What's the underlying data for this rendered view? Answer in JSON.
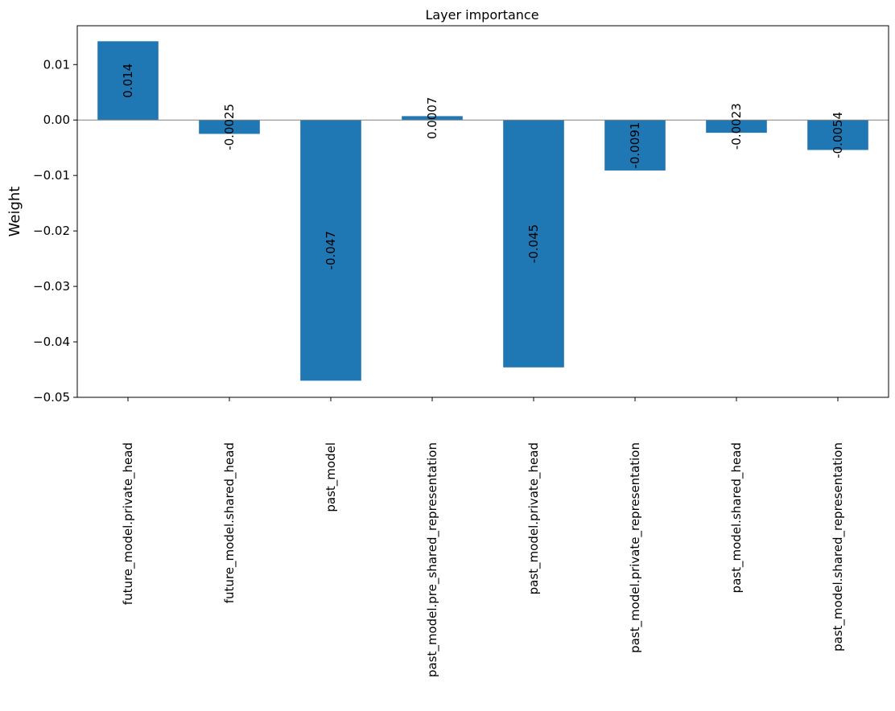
{
  "chart_data": {
    "type": "bar",
    "title": "Layer importance",
    "xlabel": "",
    "ylabel": "Weight",
    "categories": [
      "future_model.private_head",
      "future_model.shared_head",
      "past_model",
      "past_model.pre_shared_representation",
      "past_model.private_head",
      "past_model.private_representation",
      "past_model.shared_head",
      "past_model.shared_representation"
    ],
    "values": [
      0.0142,
      -0.0025,
      -0.047,
      0.0007,
      -0.0446,
      -0.0091,
      -0.0023,
      -0.0054
    ],
    "labels": [
      "0.014",
      "-0.0025",
      "-0.047",
      "0.0007",
      "-0.045",
      "-0.0091",
      "-0.0023",
      "-0.0054"
    ],
    "ylim": [
      -0.05,
      0.017
    ],
    "yticks": [
      0.01,
      0.0,
      -0.01,
      -0.02,
      -0.03,
      -0.04,
      -0.05
    ],
    "ytick_labels": [
      "0.01",
      "0.00",
      "−0.01",
      "−0.02",
      "−0.03",
      "−0.04",
      "−0.05"
    ],
    "bar_color": "#1f77b4",
    "zero_line_color": "#808080",
    "grid": false,
    "legend": "none"
  }
}
